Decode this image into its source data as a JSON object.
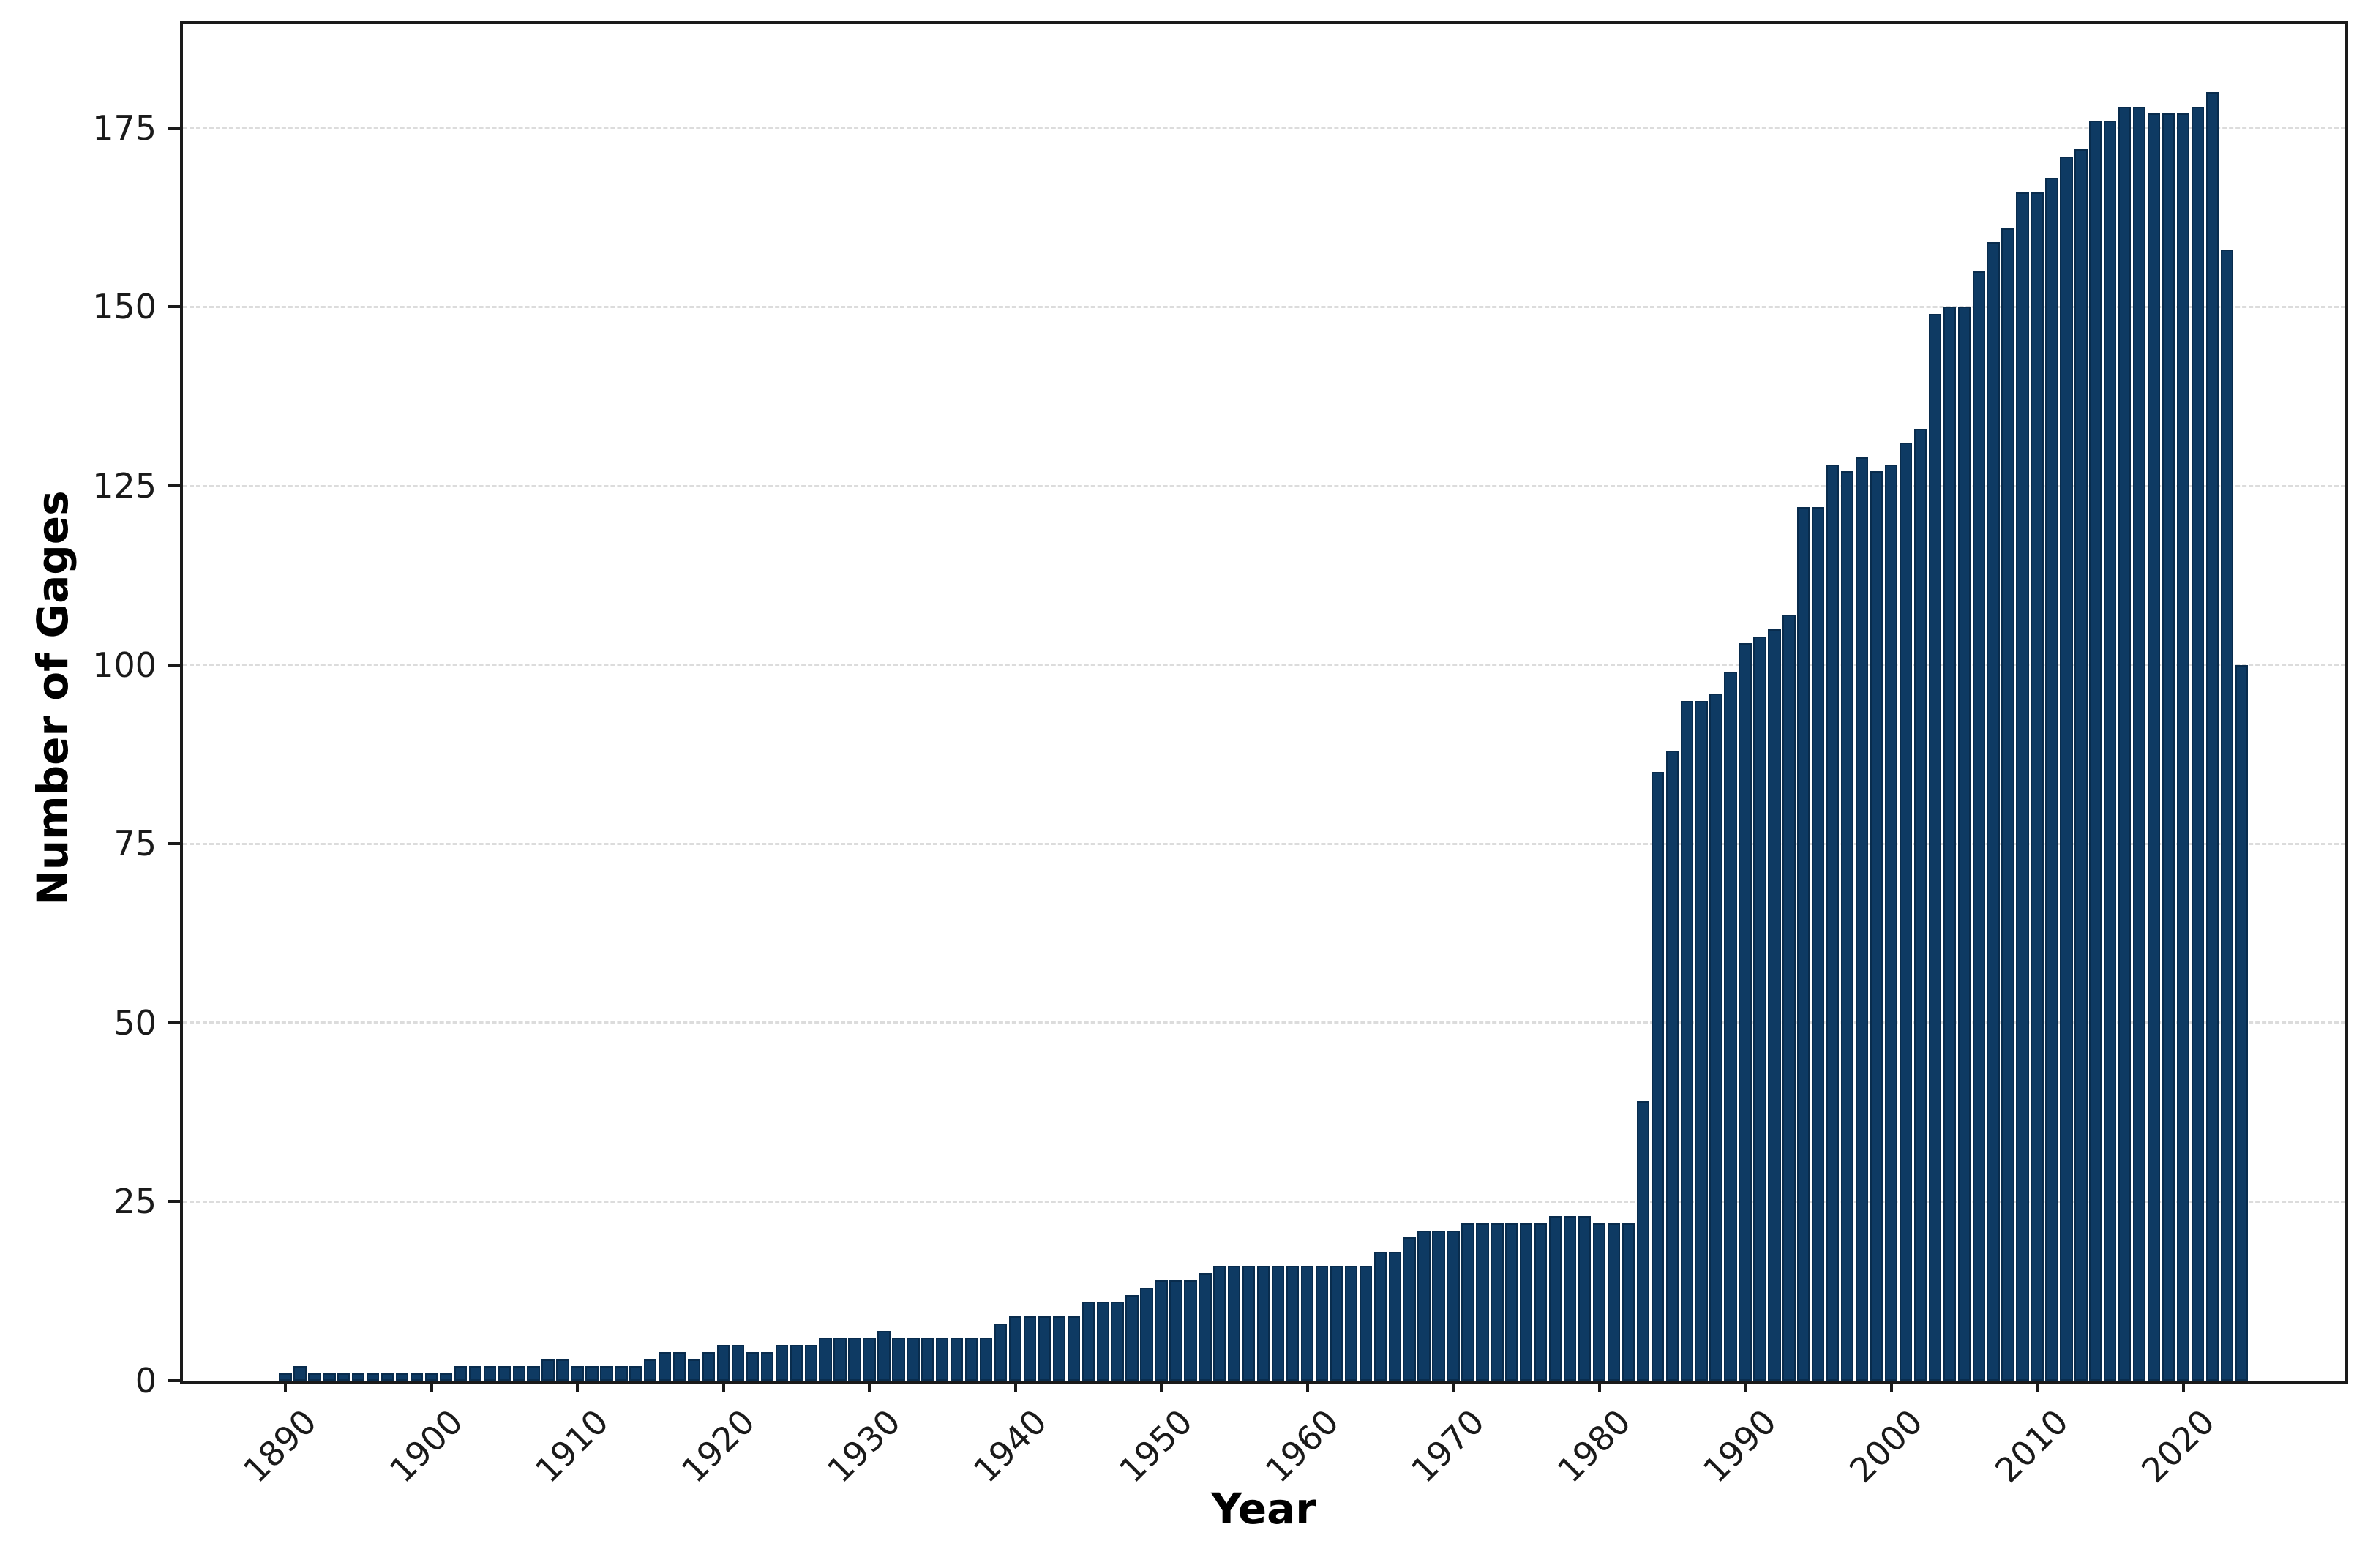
{
  "chart_data": {
    "type": "bar",
    "title": "",
    "xlabel": "Year",
    "ylabel": "Number of Gages",
    "legend": "none",
    "grid": "horizontal-dashed",
    "ylim": [
      0,
      189.5
    ],
    "yticks": [
      0,
      25,
      50,
      75,
      100,
      125,
      150,
      175
    ],
    "xticks": [
      1890,
      1900,
      1910,
      1920,
      1930,
      1940,
      1950,
      1960,
      1970,
      1980,
      1990,
      2000,
      2010,
      2020
    ],
    "years": [
      1890,
      1891,
      1892,
      1893,
      1894,
      1895,
      1896,
      1897,
      1898,
      1899,
      1900,
      1901,
      1902,
      1903,
      1904,
      1905,
      1906,
      1907,
      1908,
      1909,
      1910,
      1911,
      1912,
      1913,
      1914,
      1915,
      1916,
      1917,
      1918,
      1919,
      1920,
      1921,
      1922,
      1923,
      1924,
      1925,
      1926,
      1927,
      1928,
      1929,
      1930,
      1931,
      1932,
      1933,
      1934,
      1935,
      1936,
      1937,
      1938,
      1939,
      1940,
      1941,
      1942,
      1943,
      1944,
      1945,
      1946,
      1947,
      1948,
      1949,
      1950,
      1951,
      1952,
      1953,
      1954,
      1955,
      1956,
      1957,
      1958,
      1959,
      1960,
      1961,
      1962,
      1963,
      1964,
      1965,
      1966,
      1967,
      1968,
      1969,
      1970,
      1971,
      1972,
      1973,
      1974,
      1975,
      1976,
      1977,
      1978,
      1979,
      1980,
      1981,
      1982,
      1983,
      1984,
      1985,
      1986,
      1987,
      1988,
      1989,
      1990,
      1991,
      1992,
      1993,
      1994,
      1995,
      1996,
      1997,
      1998,
      1999,
      2000,
      2001,
      2002,
      2003,
      2004,
      2005,
      2006,
      2007,
      2008,
      2009,
      2010,
      2011,
      2012,
      2013,
      2014,
      2015,
      2016,
      2017,
      2018,
      2019,
      2020,
      2021,
      2022,
      2023,
      2024
    ],
    "values": [
      1,
      2,
      1,
      1,
      1,
      1,
      1,
      1,
      1,
      1,
      1,
      1,
      2,
      2,
      2,
      2,
      2,
      2,
      3,
      3,
      2,
      2,
      2,
      2,
      2,
      3,
      4,
      4,
      3,
      4,
      5,
      5,
      4,
      4,
      5,
      5,
      5,
      6,
      6,
      6,
      6,
      7,
      6,
      6,
      6,
      6,
      6,
      6,
      6,
      8,
      9,
      9,
      9,
      9,
      9,
      11,
      11,
      11,
      12,
      13,
      14,
      14,
      14,
      15,
      16,
      16,
      16,
      16,
      16,
      16,
      16,
      16,
      16,
      16,
      16,
      18,
      18,
      20,
      21,
      21,
      21,
      22,
      22,
      22,
      22,
      22,
      22,
      23,
      23,
      23,
      22,
      22,
      22,
      39,
      85,
      88,
      95,
      95,
      96,
      99,
      103,
      104,
      105,
      107,
      122,
      122,
      128,
      127,
      129,
      127,
      128,
      131,
      133,
      149,
      150,
      150,
      155,
      159,
      161,
      166,
      166,
      168,
      171,
      172,
      176,
      176,
      178,
      178,
      177,
      177,
      177,
      178,
      180,
      158,
      100
    ],
    "colors": {
      "bar_fill": "#0e3a63",
      "bar_edge": "#092c4d",
      "grid": "#dcdcdc",
      "spine": "#1a1a1a",
      "text": "#1a1a1a",
      "background": "#ffffff"
    }
  }
}
